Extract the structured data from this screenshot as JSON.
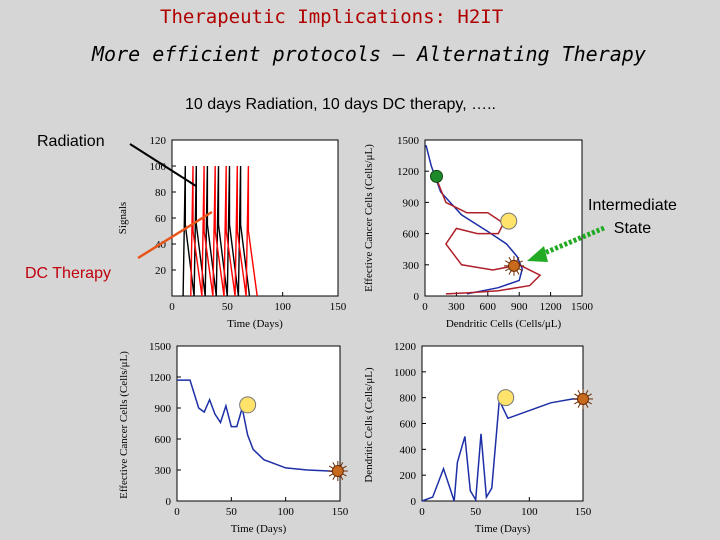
{
  "header": {
    "title": "Therapeutic Implications: H2IT",
    "subtitle": "More efficient protocols – Alternating Therapy",
    "protocol": "10 days Radiation, 10 days DC therapy, ….."
  },
  "annotations": {
    "radiation": "Radiation",
    "dc_therapy": "DC Therapy",
    "intermediate_line1": "Intermediate",
    "intermediate_line2": "State"
  },
  "colors": {
    "title": "#b00000",
    "dc_label": "#c0000c",
    "radiation_signal": "#000000",
    "dc_signal": "#ff0000",
    "trajectory_blue": "#1c2fa6",
    "trajectory_red": "#b0202a",
    "arrow_orange": "#e8551a",
    "arrow_green": "#22aa22",
    "marker_yellow": "#ffe36a",
    "marker_green": "#1f8a2a",
    "marker_brown": "#c86a1e"
  },
  "chart_data": [
    {
      "id": "signals",
      "type": "line",
      "xlabel": "Time (Days)",
      "ylabel": "Signals",
      "xlim": [
        0,
        150
      ],
      "ylim": [
        0,
        120
      ],
      "xticks": [
        "0",
        "50",
        "100",
        "150"
      ],
      "yticks": [
        "20",
        "40",
        "60",
        "80",
        "100",
        "120"
      ],
      "series": [
        {
          "values_desc": "radiation",
          "x": [
            10,
            12,
            12,
            20,
            22,
            22,
            30,
            32,
            32,
            40,
            42,
            42,
            50,
            52,
            52,
            60,
            62,
            62,
            70
          ],
          "y": [
            0,
            100,
            55,
            0,
            100,
            55,
            0,
            100,
            55,
            0,
            100,
            55,
            0,
            100,
            55,
            0,
            100,
            55,
            0
          ]
        },
        {
          "values_desc": "dc",
          "x": [
            17,
            19,
            19,
            27,
            29,
            29,
            37,
            39,
            39,
            47,
            49,
            49,
            57,
            59,
            59,
            67,
            69,
            69,
            77
          ],
          "y": [
            0,
            100,
            50,
            0,
            100,
            50,
            0,
            100,
            50,
            0,
            100,
            50,
            0,
            100,
            50,
            0,
            100,
            50,
            0
          ]
        }
      ]
    },
    {
      "id": "phase",
      "type": "line",
      "xlabel": "Dendritic Cells (Cells/μL)",
      "ylabel": "Effective Cancer Cells (Cells/μL)",
      "xlim": [
        0,
        1500
      ],
      "ylim": [
        0,
        1500
      ],
      "xticks": [
        "0",
        "300",
        "600",
        "900",
        "1200",
        "1500"
      ],
      "yticks": [
        "0",
        "300",
        "600",
        "900",
        "1200",
        "1500"
      ],
      "series": [
        {
          "color_key": "trajectory_blue",
          "x": [
            10,
            60,
            150,
            350,
            600,
            780,
            880,
            930,
            900,
            700,
            500,
            400
          ],
          "y": [
            1450,
            1250,
            1000,
            780,
            620,
            500,
            380,
            260,
            150,
            80,
            40,
            20
          ]
        },
        {
          "color_key": "trajectory_red",
          "x": [
            100,
            200,
            400,
            600,
            750,
            700,
            500,
            300,
            200,
            350,
            650,
            900,
            1100,
            1000,
            700,
            400,
            200
          ],
          "y": [
            1150,
            900,
            800,
            800,
            700,
            600,
            600,
            650,
            500,
            300,
            250,
            300,
            200,
            100,
            50,
            30,
            20
          ]
        }
      ],
      "markers": [
        {
          "kind": "green",
          "x": 110,
          "y": 1150
        },
        {
          "kind": "yellow",
          "x": 800,
          "y": 720
        },
        {
          "kind": "brown",
          "x": 850,
          "y": 290
        }
      ]
    },
    {
      "id": "cancer-time",
      "type": "line",
      "xlabel": "Time (Days)",
      "ylabel": "Effective Cancer Cells (Cells/μL)",
      "xlim": [
        0,
        150
      ],
      "ylim": [
        0,
        1500
      ],
      "xticks": [
        "0",
        "50",
        "100",
        "150"
      ],
      "yticks": [
        "0",
        "300",
        "600",
        "900",
        "1200",
        "1500"
      ],
      "series": [
        {
          "color_key": "trajectory_blue",
          "x": [
            0,
            12,
            20,
            25,
            30,
            35,
            40,
            45,
            50,
            55,
            60,
            65,
            70,
            80,
            100,
            120,
            140,
            150
          ],
          "y": [
            1170,
            1170,
            900,
            860,
            980,
            840,
            760,
            920,
            720,
            720,
            900,
            640,
            500,
            400,
            320,
            300,
            290,
            280
          ]
        }
      ],
      "markers": [
        {
          "kind": "yellow",
          "x": 65,
          "y": 930
        },
        {
          "kind": "brown",
          "x": 148,
          "y": 290
        }
      ]
    },
    {
      "id": "dendritic-time",
      "type": "line",
      "xlabel": "Time (Days)",
      "ylabel": "Dendritic Cells (Cells/μL)",
      "xlim": [
        0,
        150
      ],
      "ylim": [
        0,
        1200
      ],
      "xticks": [
        "0",
        "50",
        "100",
        "150"
      ],
      "yticks": [
        "0",
        "200",
        "400",
        "600",
        "800",
        "1000",
        "1200"
      ],
      "series": [
        {
          "color_key": "trajectory_blue",
          "x": [
            0,
            10,
            20,
            30,
            33,
            40,
            45,
            50,
            55,
            60,
            65,
            70,
            72,
            80,
            100,
            120,
            140,
            150
          ],
          "y": [
            0,
            30,
            250,
            0,
            300,
            500,
            80,
            10,
            520,
            30,
            100,
            580,
            780,
            640,
            700,
            760,
            790,
            790
          ]
        }
      ],
      "markers": [
        {
          "kind": "yellow",
          "x": 78,
          "y": 800
        },
        {
          "kind": "brown",
          "x": 150,
          "y": 790
        }
      ]
    }
  ]
}
